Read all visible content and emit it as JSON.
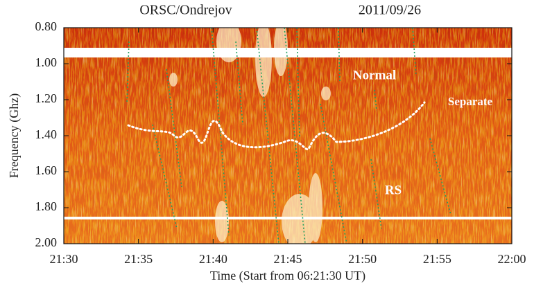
{
  "chart_data": {
    "type": "spectrogram",
    "title": "ORSC/Ondrejov",
    "date": "2011/09/26",
    "x_label": "Time (Start from 06:21:30 UT)",
    "y_label": "Frequency (Ghz)",
    "xlim": [
      "21:30",
      "22:00"
    ],
    "xticks": [
      "21:30",
      "21:35",
      "21:40",
      "21:45",
      "21:50",
      "21:55",
      "22:00"
    ],
    "ylim": [
      0.8,
      2.0
    ],
    "y_inverted": true,
    "yticks": [
      {
        "value": 0.8,
        "label": "0.80"
      },
      {
        "value": 1.0,
        "label": "1.00"
      },
      {
        "value": 1.2,
        "label": "1.20"
      },
      {
        "value": 1.4,
        "label": "1.40"
      },
      {
        "value": 1.6,
        "label": "1.60"
      },
      {
        "value": 1.8,
        "label": "1.80"
      },
      {
        "value": 2.0,
        "label": "2.00"
      }
    ],
    "annotations": [
      "Normal",
      "Separate",
      "RS"
    ]
  }
}
